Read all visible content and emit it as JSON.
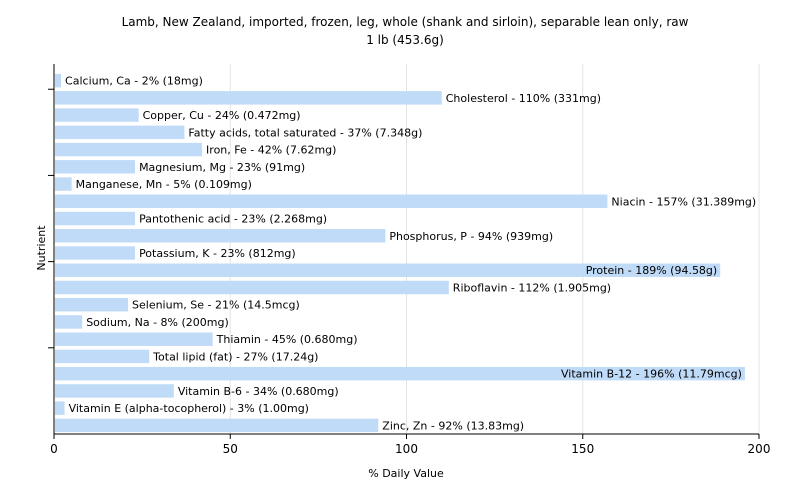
{
  "chart_data": {
    "type": "bar",
    "orientation": "horizontal",
    "title": "Lamb, New Zealand, imported, frozen, leg, whole (shank and sirloin), separable lean only, raw",
    "subtitle": "1 lb (453.6g)",
    "xlabel": "% Daily Value",
    "ylabel": "Nutrient",
    "xlim": [
      0,
      200
    ],
    "xticks": [
      "0",
      "50",
      "100",
      "150",
      "200"
    ],
    "grid": true,
    "bar_color": "#c0dbf8",
    "categories": [
      "Calcium, Ca",
      "Cholesterol",
      "Copper, Cu",
      "Fatty acids, total saturated",
      "Iron, Fe",
      "Magnesium, Mg",
      "Manganese, Mn",
      "Niacin",
      "Pantothenic acid",
      "Phosphorus, P",
      "Potassium, K",
      "Protein",
      "Riboflavin",
      "Selenium, Se",
      "Sodium, Na",
      "Thiamin",
      "Total lipid (fat)",
      "Vitamin B-12",
      "Vitamin B-6",
      "Vitamin E (alpha-tocopherol)",
      "Zinc, Zn"
    ],
    "values": [
      2,
      110,
      24,
      37,
      42,
      23,
      5,
      157,
      23,
      94,
      23,
      189,
      112,
      21,
      8,
      45,
      27,
      196,
      34,
      3,
      92
    ],
    "labels": [
      "Calcium, Ca - 2% (18mg)",
      "Cholesterol - 110% (331mg)",
      "Copper, Cu - 24% (0.472mg)",
      "Fatty acids, total saturated - 37% (7.348g)",
      "Iron, Fe - 42% (7.62mg)",
      "Magnesium, Mg - 23% (91mg)",
      "Manganese, Mn - 5% (0.109mg)",
      "Niacin - 157% (31.389mg)",
      "Pantothenic acid - 23% (2.268mg)",
      "Phosphorus, P - 94% (939mg)",
      "Potassium, K - 23% (812mg)",
      "Protein - 189% (94.58g)",
      "Riboflavin - 112% (1.905mg)",
      "Selenium, Se - 21% (14.5mcg)",
      "Sodium, Na - 8% (200mg)",
      "Thiamin - 45% (0.680mg)",
      "Total lipid (fat) - 27% (17.24g)",
      "Vitamin B-12 - 196% (11.79mcg)",
      "Vitamin B-6 - 34% (0.680mg)",
      "Vitamin E (alpha-tocopherol) - 3% (1.00mg)",
      "Zinc, Zn - 92% (13.83mg)"
    ]
  }
}
